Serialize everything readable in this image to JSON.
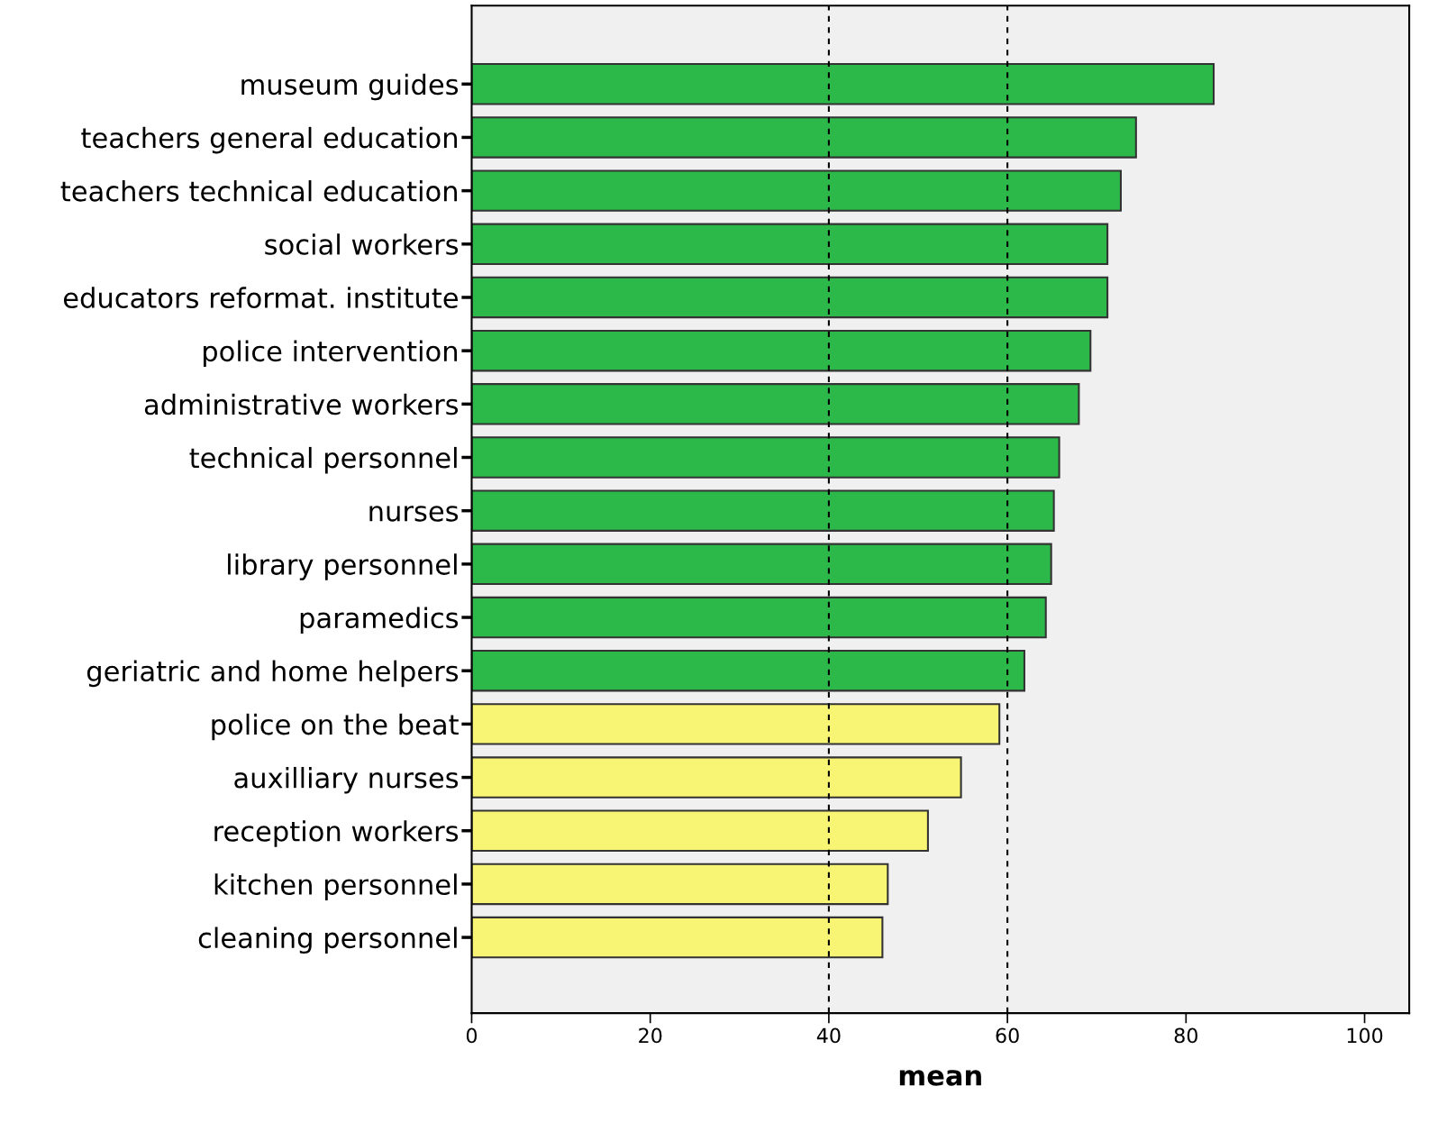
{
  "chart_data": {
    "type": "bar",
    "orientation": "horizontal",
    "xlabel": "mean",
    "categories": [
      "museum guides",
      "teachers general education",
      "teachers technical education",
      "social workers",
      "educators reformat. institute",
      "police intervention",
      "administrative workers",
      "technical personnel",
      "nurses",
      "library personnel",
      "paramedics",
      "geriatric and home helpers",
      "police on the beat",
      "auxilliary nurses",
      "reception workers",
      "kitchen personnel",
      "cleaning personnel"
    ],
    "values": [
      83.1,
      74.4,
      72.7,
      71.2,
      71.2,
      69.3,
      68.0,
      65.8,
      65.2,
      64.9,
      64.3,
      61.9,
      59.1,
      54.8,
      51.1,
      46.6,
      46.0
    ],
    "colors": [
      "#2db84a",
      "#2db84a",
      "#2db84a",
      "#2db84a",
      "#2db84a",
      "#2db84a",
      "#2db84a",
      "#2db84a",
      "#2db84a",
      "#2db84a",
      "#2db84a",
      "#2db84a",
      "#f8f574",
      "#f8f574",
      "#f8f574",
      "#f8f574",
      "#f8f574"
    ],
    "xlim": [
      0,
      105
    ],
    "xticks": [
      0,
      20,
      40,
      60,
      80,
      100
    ],
    "grid": false,
    "legend": false,
    "ref_lines": [
      {
        "axis": "x",
        "value": 40,
        "color": "#000000",
        "line_style": "dashed"
      },
      {
        "axis": "x",
        "value": 60,
        "color": "#000000",
        "line_style": "dashed"
      }
    ]
  }
}
